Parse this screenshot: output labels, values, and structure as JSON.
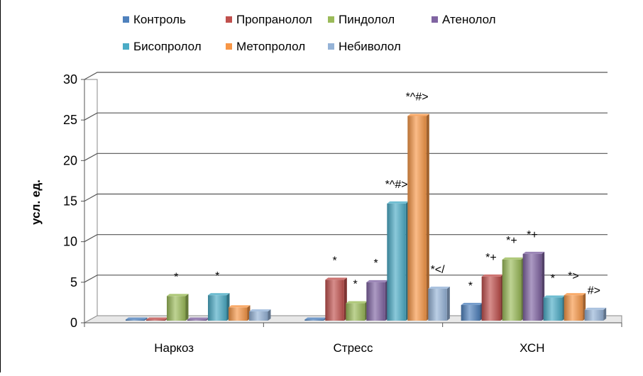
{
  "chart_data": {
    "type": "bar",
    "ylabel": "усл. ед.",
    "ylim": [
      0,
      30
    ],
    "y_ticks": [
      0,
      5,
      10,
      15,
      20,
      25,
      30
    ],
    "grid": true,
    "legend_position": "top",
    "categories": [
      "Наркоз",
      "Стресс",
      "ХСН"
    ],
    "series": [
      {
        "name": "Контроль",
        "color": "#4F81BD",
        "values": [
          0.0,
          0.0,
          2.2
        ],
        "annotations": [
          "",
          "",
          "*"
        ]
      },
      {
        "name": "Пропранолол",
        "color": "#C0504D",
        "values": [
          0.1,
          5.3,
          5.7
        ],
        "annotations": [
          "",
          "*",
          "*+"
        ]
      },
      {
        "name": "Пиндолол",
        "color": "#9BBB59",
        "values": [
          3.3,
          2.4,
          7.8
        ],
        "annotations": [
          "*",
          "*",
          "*+"
        ]
      },
      {
        "name": "Атенолол",
        "color": "#8064A2",
        "values": [
          0.1,
          5.0,
          8.5
        ],
        "annotations": [
          "",
          "*",
          "*+"
        ]
      },
      {
        "name": "Бисопролол",
        "color": "#4BACC6",
        "values": [
          3.4,
          14.7,
          3.1
        ],
        "annotations": [
          "*",
          "*^#>",
          "*"
        ]
      },
      {
        "name": "Метопролол",
        "color": "#F79646",
        "values": [
          1.9,
          25.5,
          3.4
        ],
        "annotations": [
          "",
          "*^#>",
          "*>"
        ]
      },
      {
        "name": "Небиволол",
        "color": "#95B3D7",
        "values": [
          1.4,
          4.2,
          1.6
        ],
        "annotations": [
          "",
          "*</",
          "#>"
        ]
      }
    ]
  }
}
